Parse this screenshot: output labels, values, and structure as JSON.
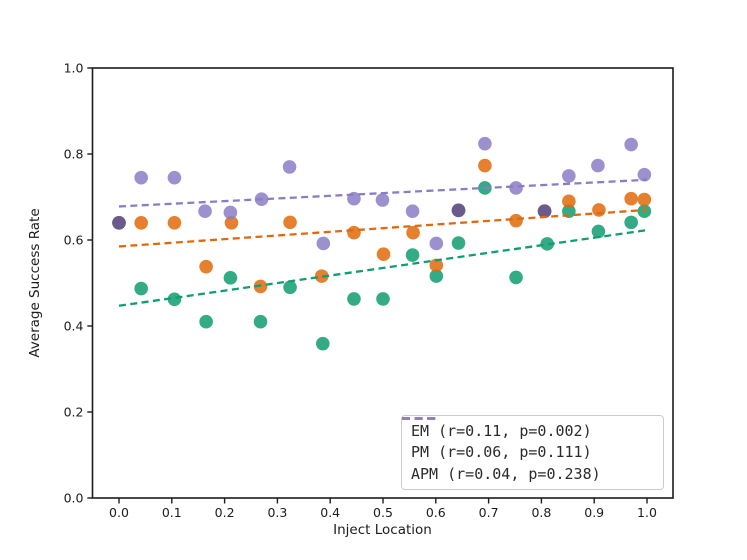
{
  "chart_data": {
    "type": "scatter",
    "title": "",
    "xlabel": "Inject Location",
    "ylabel": "Average Success Rate",
    "xlim": [
      -0.05,
      1.05
    ],
    "ylim": [
      0.0,
      1.0
    ],
    "grid": false,
    "legend_position": "lower right",
    "x_tick_values": [
      0.0,
      0.1,
      0.2,
      0.3,
      0.4,
      0.5,
      0.6,
      0.7,
      0.8,
      0.9,
      1.0
    ],
    "x_tick_labels": [
      "0.0",
      "0.1",
      "0.2",
      "0.3",
      "0.4",
      "0.5",
      "0.6",
      "0.7",
      "0.8",
      "0.9",
      "1.0"
    ],
    "y_tick_values": [
      0.0,
      0.2,
      0.4,
      0.6,
      0.8,
      1.0
    ],
    "y_tick_labels": [
      "0.0",
      "0.2",
      "0.4",
      "0.6",
      "0.8",
      "1.0"
    ],
    "series": [
      {
        "name": "EM",
        "legend": "EM (r=0.11, p=0.002)",
        "r": 0.11,
        "p": 0.002,
        "marker_color": "#0f9c70",
        "line_color": "#109d74",
        "trendline": {
          "x": [
            0.0,
            1.0
          ],
          "y": [
            0.447,
            0.623
          ]
        },
        "points": [
          [
            0.042,
            0.487
          ],
          [
            0.105,
            0.462
          ],
          [
            0.165,
            0.41
          ],
          [
            0.211,
            0.512
          ],
          [
            0.268,
            0.41
          ],
          [
            0.324,
            0.49
          ],
          [
            0.386,
            0.359
          ],
          [
            0.445,
            0.463
          ],
          [
            0.5,
            0.463
          ],
          [
            0.556,
            0.565
          ],
          [
            0.601,
            0.516
          ],
          [
            0.643,
            0.593
          ],
          [
            0.693,
            0.721
          ],
          [
            0.752,
            0.513
          ],
          [
            0.811,
            0.591
          ],
          [
            0.852,
            0.667
          ],
          [
            0.908,
            0.62
          ],
          [
            0.97,
            0.641
          ],
          [
            0.995,
            0.667
          ]
        ]
      },
      {
        "name": "PM",
        "legend": "PM (r=0.06, p=0.111)",
        "r": 0.06,
        "p": 0.111,
        "marker_color": "#df6a09",
        "line_color": "#df6a0d",
        "trendline": {
          "x": [
            0.0,
            1.0
          ],
          "y": [
            0.585,
            0.67
          ]
        },
        "points": [
          [
            0.0,
            0.64
          ],
          [
            0.042,
            0.64
          ],
          [
            0.105,
            0.64
          ],
          [
            0.165,
            0.538
          ],
          [
            0.213,
            0.64
          ],
          [
            0.268,
            0.492
          ],
          [
            0.324,
            0.641
          ],
          [
            0.384,
            0.516
          ],
          [
            0.445,
            0.617
          ],
          [
            0.501,
            0.567
          ],
          [
            0.557,
            0.617
          ],
          [
            0.601,
            0.541
          ],
          [
            0.643,
            0.669
          ],
          [
            0.693,
            0.773
          ],
          [
            0.752,
            0.645
          ],
          [
            0.806,
            0.667
          ],
          [
            0.852,
            0.69
          ],
          [
            0.909,
            0.67
          ],
          [
            0.97,
            0.696
          ],
          [
            0.995,
            0.694
          ]
        ]
      },
      {
        "name": "APM",
        "legend": "APM (r=0.04, p=0.238)",
        "r": 0.04,
        "p": 0.238,
        "marker_color": "#8b7cc6",
        "line_color": "#8b7cc6",
        "trendline": {
          "x": [
            0.0,
            1.0
          ],
          "y": [
            0.678,
            0.74
          ]
        },
        "points": [
          [
            0.0,
            0.64
          ],
          [
            0.042,
            0.745
          ],
          [
            0.105,
            0.745
          ],
          [
            0.163,
            0.667
          ],
          [
            0.211,
            0.664
          ],
          [
            0.27,
            0.695
          ],
          [
            0.323,
            0.77
          ],
          [
            0.387,
            0.592
          ],
          [
            0.445,
            0.696
          ],
          [
            0.499,
            0.693
          ],
          [
            0.556,
            0.667
          ],
          [
            0.601,
            0.592
          ],
          [
            0.643,
            0.669
          ],
          [
            0.693,
            0.824
          ],
          [
            0.752,
            0.721
          ],
          [
            0.806,
            0.667
          ],
          [
            0.852,
            0.749
          ],
          [
            0.907,
            0.773
          ],
          [
            0.97,
            0.822
          ],
          [
            0.995,
            0.752
          ]
        ]
      }
    ],
    "overlap_points": {
      "note": "locations where PM and APM markers coincide and blend darker",
      "color": "#6b5a8e",
      "points": [
        [
          0.0,
          0.64
        ],
        [
          0.643,
          0.669
        ],
        [
          0.806,
          0.667
        ]
      ]
    }
  }
}
